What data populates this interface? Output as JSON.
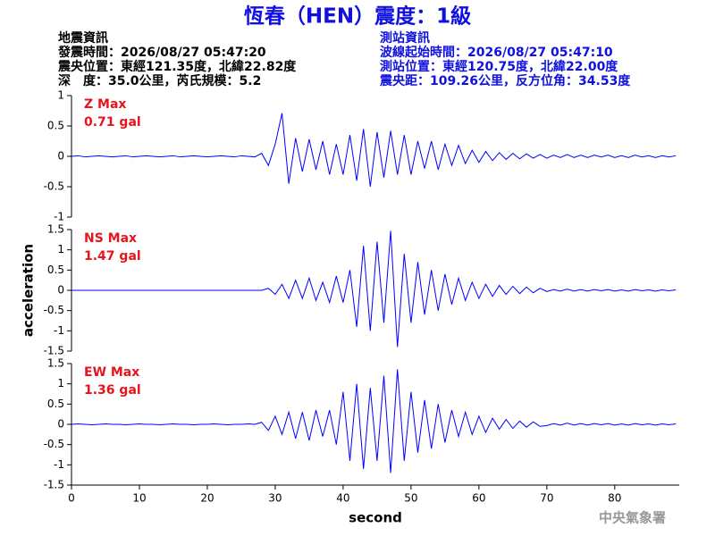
{
  "header": {
    "title": "恆春（HEN）震度：1級",
    "title_color": "#1010e0",
    "left": [
      "地震資訊",
      "發震時間：2026/08/27 05:47:20",
      "震央位置：東經121.35度，北緯22.82度",
      "深　度：35.0公里，芮氏規模：5.2"
    ],
    "right": [
      "測站資訊",
      "波線起始時間：2026/08/27 05:47:10",
      "測站位置：東經120.75度，北緯22.00度",
      "震央距：109.26公里，反方位角：34.53度"
    ],
    "right_color": "#1010e0"
  },
  "footer": "中央氣象署",
  "chart_data": [
    {
      "type": "line",
      "annotations": [
        "Z Max",
        "0.71 gal"
      ],
      "annotation_color": "#e8141b",
      "color": "#0000ff",
      "xlim": [
        0,
        89.5
      ],
      "ylim": [
        -1,
        1
      ],
      "yticks": [
        -1,
        -0.5,
        0,
        0.5,
        1
      ],
      "x": [
        0,
        1,
        2,
        3,
        4,
        5,
        6,
        7,
        8,
        9,
        10,
        11,
        12,
        13,
        14,
        15,
        16,
        17,
        18,
        19,
        20,
        21,
        22,
        23,
        24,
        25,
        26,
        27,
        28,
        29,
        30,
        31,
        32,
        33,
        34,
        35,
        36,
        37,
        38,
        39,
        40,
        41,
        42,
        43,
        44,
        45,
        46,
        47,
        48,
        49,
        50,
        51,
        52,
        53,
        54,
        55,
        56,
        57,
        58,
        59,
        60,
        61,
        62,
        63,
        64,
        65,
        66,
        67,
        68,
        69,
        70,
        71,
        72,
        73,
        74,
        75,
        76,
        77,
        78,
        79,
        80,
        81,
        82,
        83,
        84,
        85,
        86,
        87,
        88,
        89
      ],
      "values": [
        0,
        0.01,
        -0.01,
        0,
        0.01,
        0,
        -0.01,
        0,
        0.01,
        -0.01,
        0,
        0.01,
        0,
        -0.01,
        0,
        0.01,
        -0.01,
        0,
        0.01,
        0,
        -0.01,
        0,
        0.01,
        0,
        -0.01,
        0.01,
        0,
        -0.01,
        0.05,
        -0.15,
        0.2,
        0.71,
        -0.45,
        0.3,
        -0.25,
        0.28,
        -0.22,
        0.25,
        -0.3,
        0.2,
        -0.3,
        0.35,
        -0.4,
        0.45,
        -0.5,
        0.4,
        -0.35,
        0.42,
        -0.3,
        0.35,
        -0.3,
        0.25,
        -0.2,
        0.25,
        -0.22,
        0.2,
        -0.15,
        0.18,
        -0.12,
        0.1,
        -0.1,
        0.08,
        -0.07,
        0.06,
        -0.05,
        0.05,
        -0.04,
        0.04,
        -0.03,
        0.03,
        -0.03,
        0.02,
        -0.02,
        0.03,
        -0.02,
        0.02,
        -0.02,
        0.02,
        -0.01,
        0.02,
        -0.02,
        0.01,
        -0.02,
        0.02,
        -0.01,
        0.01,
        -0.02,
        0.01,
        -0.01,
        0.01
      ]
    },
    {
      "type": "line",
      "annotations": [
        "NS Max",
        "1.47 gal"
      ],
      "annotation_color": "#e8141b",
      "color": "#0000ff",
      "ylabel": "acceleration",
      "xlim": [
        0,
        89.5
      ],
      "ylim": [
        -1.5,
        1.5
      ],
      "yticks": [
        -1.5,
        -1,
        -0.5,
        0,
        0.5,
        1,
        1.5
      ],
      "x": [
        0,
        1,
        2,
        3,
        4,
        5,
        6,
        7,
        8,
        9,
        10,
        11,
        12,
        13,
        14,
        15,
        16,
        17,
        18,
        19,
        20,
        21,
        22,
        23,
        24,
        25,
        26,
        27,
        28,
        29,
        30,
        31,
        32,
        33,
        34,
        35,
        36,
        37,
        38,
        39,
        40,
        41,
        42,
        43,
        44,
        45,
        46,
        47,
        48,
        49,
        50,
        51,
        52,
        53,
        54,
        55,
        56,
        57,
        58,
        59,
        60,
        61,
        62,
        63,
        64,
        65,
        66,
        67,
        68,
        69,
        70,
        71,
        72,
        73,
        74,
        75,
        76,
        77,
        78,
        79,
        80,
        81,
        82,
        83,
        84,
        85,
        86,
        87,
        88,
        89
      ],
      "values": [
        0,
        0,
        0,
        0,
        0,
        0,
        0,
        0,
        0,
        0,
        0,
        0,
        0,
        0,
        0,
        0,
        0,
        0,
        0,
        0,
        0,
        0,
        0,
        0,
        0,
        0,
        0,
        0,
        0,
        0.05,
        -0.1,
        0.15,
        -0.2,
        0.25,
        -0.2,
        0.3,
        -0.25,
        0.2,
        -0.3,
        0.35,
        -0.3,
        0.5,
        -0.9,
        1.1,
        -1.0,
        1.2,
        -0.8,
        1.47,
        -1.4,
        0.9,
        -0.8,
        0.7,
        -0.6,
        0.5,
        -0.5,
        0.4,
        -0.35,
        0.3,
        -0.25,
        0.2,
        -0.2,
        0.15,
        -0.15,
        0.12,
        -0.1,
        0.1,
        -0.08,
        0.08,
        -0.06,
        0.05,
        -0.03,
        0.02,
        -0.02,
        0.03,
        -0.02,
        0.02,
        -0.02,
        0.02,
        -0.01,
        0.02,
        -0.02,
        0.01,
        -0.02,
        0.02,
        -0.01,
        0.01,
        -0.02,
        0.01,
        -0.01,
        0.01
      ]
    },
    {
      "type": "line",
      "annotations": [
        "EW Max",
        "1.36 gal"
      ],
      "annotation_color": "#e8141b",
      "color": "#0000ff",
      "xlabel": "second",
      "xlim": [
        0,
        89.5
      ],
      "xticks": [
        0,
        10,
        20,
        30,
        40,
        50,
        60,
        70,
        80
      ],
      "ylim": [
        -1.5,
        1.5
      ],
      "yticks": [
        -1.5,
        -1,
        -0.5,
        0,
        0.5,
        1,
        1.5
      ],
      "x": [
        0,
        1,
        2,
        3,
        4,
        5,
        6,
        7,
        8,
        9,
        10,
        11,
        12,
        13,
        14,
        15,
        16,
        17,
        18,
        19,
        20,
        21,
        22,
        23,
        24,
        25,
        26,
        27,
        28,
        29,
        30,
        31,
        32,
        33,
        34,
        35,
        36,
        37,
        38,
        39,
        40,
        41,
        42,
        43,
        44,
        45,
        46,
        47,
        48,
        49,
        50,
        51,
        52,
        53,
        54,
        55,
        56,
        57,
        58,
        59,
        60,
        61,
        62,
        63,
        64,
        65,
        66,
        67,
        68,
        69,
        70,
        71,
        72,
        73,
        74,
        75,
        76,
        77,
        78,
        79,
        80,
        81,
        82,
        83,
        84,
        85,
        86,
        87,
        88,
        89
      ],
      "values": [
        0,
        0.01,
        0,
        -0.01,
        0,
        0.01,
        0,
        0,
        -0.01,
        0,
        0.01,
        0,
        0,
        -0.01,
        0,
        0.01,
        0,
        0,
        -0.01,
        0,
        0,
        0.01,
        0,
        -0.01,
        0,
        0,
        0.01,
        0,
        0.05,
        -0.15,
        0.2,
        -0.25,
        0.3,
        -0.35,
        0.3,
        -0.4,
        0.35,
        -0.3,
        0.35,
        -0.5,
        0.8,
        -0.9,
        1.0,
        -1.1,
        0.9,
        -0.9,
        1.2,
        -1.2,
        1.36,
        -0.9,
        0.8,
        -0.7,
        0.6,
        -0.6,
        0.5,
        -0.45,
        0.35,
        -0.3,
        0.3,
        -0.25,
        0.2,
        -0.2,
        0.15,
        -0.12,
        0.12,
        -0.1,
        0.08,
        -0.07,
        0.06,
        -0.05,
        -0.03,
        0.02,
        -0.02,
        0.03,
        -0.02,
        0.02,
        -0.02,
        0.02,
        -0.01,
        0.02,
        -0.02,
        0.01,
        -0.02,
        0.02,
        -0.01,
        0.01,
        -0.02,
        0.01,
        -0.01,
        0.01
      ]
    }
  ]
}
